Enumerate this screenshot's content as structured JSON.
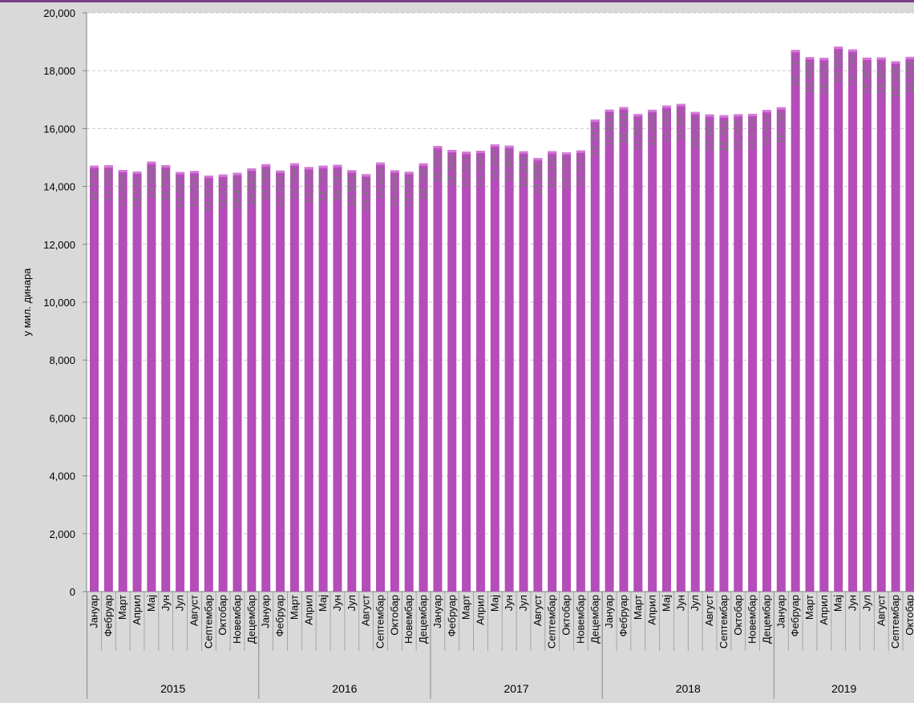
{
  "chart_data": {
    "type": "bar",
    "title": "",
    "xlabel": "",
    "ylabel": "у мил. динара",
    "ylim": [
      0,
      20000
    ],
    "yticks": [
      "0",
      "2,000",
      "4,000",
      "6,000",
      "8,000",
      "10,000",
      "12,000",
      "14,000",
      "16,000",
      "18,000",
      "20,000"
    ],
    "grid": "horizontal dashed",
    "bar_color": "#b44db9",
    "year_groups": [
      {
        "label": "2015",
        "months": [
          "Јануар",
          "Фебруар",
          "Март",
          "Април",
          "Мај",
          "Јун",
          "Јул",
          "Август",
          "Септембар",
          "Октобар",
          "Новембар",
          "Децембар"
        ],
        "values": [
          14718,
          14730,
          14569,
          14515,
          14856,
          14732,
          14497,
          14533,
          14373,
          14411,
          14470,
          14620
        ]
      },
      {
        "label": "2016",
        "months": [
          "Јануар",
          "Фебруар",
          "Март",
          "Април",
          "Мај",
          "Јун",
          "Јул",
          "Август",
          "Септембар",
          "Октобар",
          "Новембар",
          "Децембар"
        ],
        "values": [
          14768,
          14548,
          14799,
          14670,
          14720,
          14747,
          14561,
          14423,
          14826,
          14559,
          14506,
          14798
        ]
      },
      {
        "label": "2017",
        "months": [
          "Јануар",
          "Фебруар",
          "Март",
          "Април",
          "Мај",
          "Јун",
          "Јул",
          "Август",
          "Септембар",
          "Октобар",
          "Новембар",
          "Децембар"
        ],
        "values": [
          15397,
          15260,
          15201,
          15234,
          15450,
          15409,
          15214,
          14980,
          15216,
          15175,
          15242,
          16310
        ]
      },
      {
        "label": "2018",
        "months": [
          "Јануар",
          "Фебруар",
          "Март",
          "Април",
          "Мај",
          "Јун",
          "Јул",
          "Август",
          "Септембар",
          "Октобар",
          "Новембар",
          "Децембар"
        ],
        "values": [
          16653,
          16741,
          16501,
          16650,
          16794,
          16851,
          16573,
          16487,
          16462,
          16497,
          16510,
          16642
        ]
      },
      {
        "label": "2019",
        "months": [
          "Јануар",
          "Фебруар",
          "Март",
          "Април",
          "Мај",
          "Јун",
          "Јул",
          "Август",
          "Септембар",
          "Октобар"
        ],
        "values": [
          16736,
          18717,
          18469,
          18442,
          18831,
          18736,
          18452,
          18457,
          18326,
          18479
        ]
      }
    ]
  }
}
